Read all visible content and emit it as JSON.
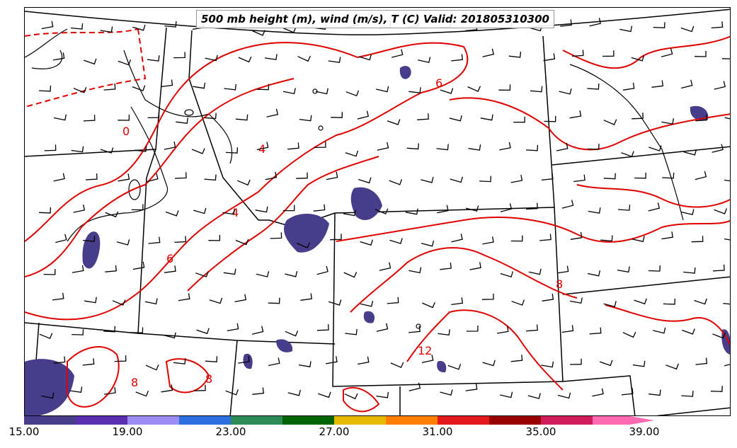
{
  "title": "500 mb height (m), wind (m/s), T (C) Valid: 201805310300",
  "colorbar": {
    "colors": [
      "#483d8b",
      "#5b2fb0",
      "#9d8cf2",
      "#2b6fe0",
      "#2e8b57",
      "#006400",
      "#e6b800",
      "#ff7f00",
      "#e31a1c",
      "#990000",
      "#d01c5b",
      "#ff69b4"
    ],
    "ticks": [
      "15.00",
      "19.00",
      "23.00",
      "27.00",
      "31.00",
      "35.00",
      "39.00"
    ],
    "extend": "max"
  },
  "contour_labels": [
    "0",
    "4",
    "4",
    "6",
    "6",
    "8",
    "8",
    "8",
    "12"
  ],
  "colors": {
    "temperature_contour": "#e00000",
    "boundaries": "#000000",
    "shading": "#483d8b"
  },
  "wind_barbs": "plotted"
}
